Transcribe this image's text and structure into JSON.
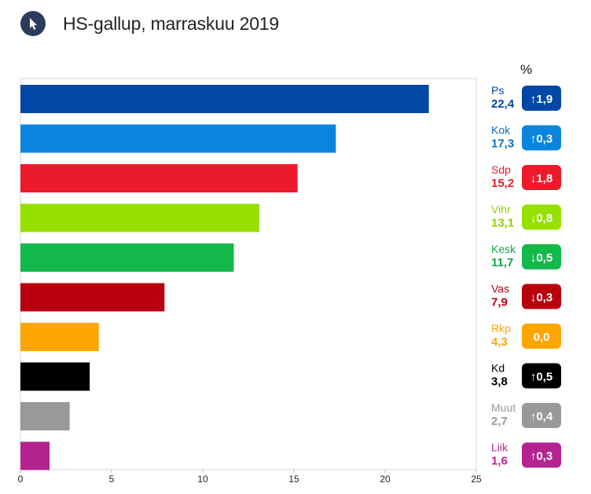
{
  "header": {
    "title": "HS-gallup, marraskuu 2019",
    "logo_icon": "cursor-arrow-icon",
    "percent_label": "%"
  },
  "chart_data": {
    "type": "bar",
    "orientation": "horizontal",
    "title": "HS-gallup, marraskuu 2019",
    "xlabel": "",
    "ylabel": "",
    "xlim": [
      0,
      25
    ],
    "xticks": [
      "0",
      "5",
      "10",
      "15",
      "20",
      "25"
    ],
    "grid": false,
    "series": [
      {
        "categories": [
          "Ps",
          "Kok",
          "Sdp",
          "Vihr",
          "Kesk",
          "Vas",
          "Rkp",
          "Kd",
          "Muut",
          "Liik"
        ],
        "values": [
          22.4,
          17.3,
          15.2,
          13.1,
          11.7,
          7.9,
          4.3,
          3.8,
          2.7,
          1.6
        ],
        "value_labels": [
          "22,4",
          "17,3",
          "15,2",
          "13,1",
          "11,7",
          "7,9",
          "4,3",
          "3,8",
          "2,7",
          "1,6"
        ],
        "changes": [
          "↑1,9",
          "↑0,3",
          "↓1,8",
          "↓0,8",
          "↓0,5",
          "↓0,3",
          "0,0",
          "↑0,5",
          "↑0,4",
          "↑0,3"
        ],
        "colors": [
          "#0047a6",
          "#0a85de",
          "#ec1b2c",
          "#96e000",
          "#13b94a",
          "#b8000f",
          "#ffa500",
          "#000000",
          "#999999",
          "#b4238f"
        ],
        "label_colors": [
          "#0047a6",
          "#0a70c0",
          "#ec1b2c",
          "#8cd100",
          "#13a148",
          "#b8000f",
          "#ffa500",
          "#000000",
          "#999999",
          "#b4238f"
        ]
      }
    ]
  }
}
